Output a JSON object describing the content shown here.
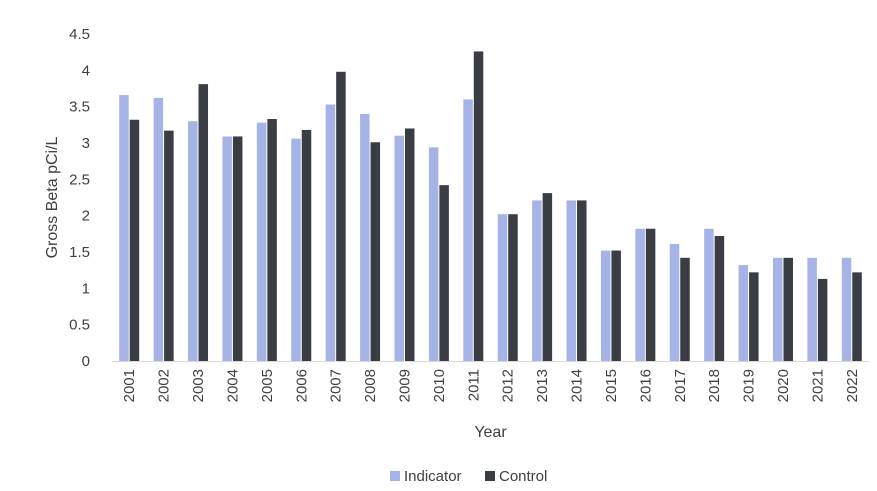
{
  "chart_data": {
    "type": "bar",
    "categories": [
      "2001",
      "2002",
      "2003",
      "2004",
      "2005",
      "2006",
      "2007",
      "2008",
      "2009",
      "2010",
      "2011",
      "2012",
      "2013",
      "2014",
      "2015",
      "2016",
      "2017",
      "2018",
      "2019",
      "2020",
      "2021",
      "2022"
    ],
    "series": [
      {
        "name": "Indicator",
        "color": "#a6b3e6",
        "values": [
          3.66,
          3.62,
          3.3,
          3.09,
          3.28,
          3.06,
          3.53,
          3.4,
          3.1,
          2.94,
          3.6,
          2.02,
          2.21,
          2.21,
          1.52,
          1.82,
          1.61,
          1.82,
          1.32,
          1.42,
          1.42,
          1.42
        ]
      },
      {
        "name": "Control",
        "color": "#3a3d44",
        "values": [
          3.32,
          3.17,
          3.81,
          3.09,
          3.33,
          3.18,
          3.98,
          3.01,
          3.2,
          2.42,
          4.26,
          2.02,
          2.31,
          2.21,
          1.52,
          1.82,
          1.42,
          1.72,
          1.22,
          1.42,
          1.13,
          1.22
        ]
      }
    ],
    "title": "",
    "xlabel": "Year",
    "ylabel": "Gross Beta pCi/L",
    "ylim": [
      0,
      4.5
    ],
    "yticks": [
      "0",
      "0.5",
      "1",
      "1.5",
      "2",
      "2.5",
      "3",
      "3.5",
      "4",
      "4.5"
    ],
    "grid": false,
    "legend_position": "bottom"
  }
}
